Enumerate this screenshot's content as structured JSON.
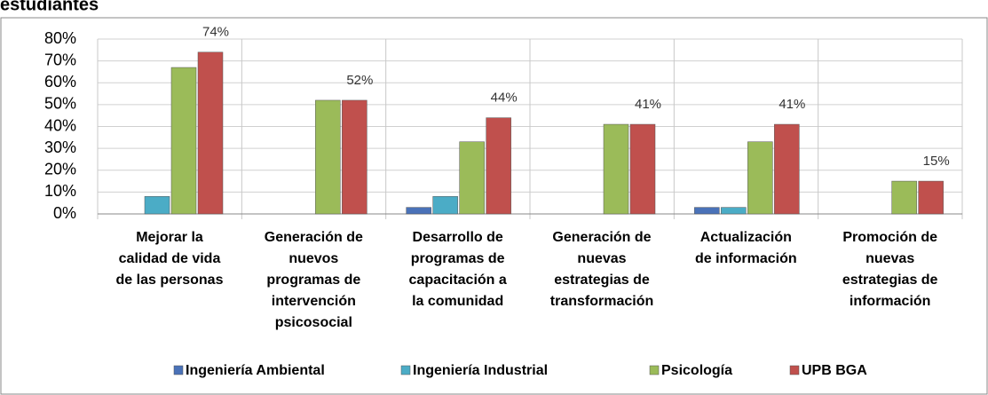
{
  "chart_data": {
    "type": "bar",
    "title": "estudiantes",
    "categories": [
      "Mejorar la\ncalidad de vida\nde las personas",
      "Generación de\nnuevos\nprogramas de\nintervención\npsicosocial",
      "Desarrollo de\nprogramas de\ncapacitación a\nla comunidad",
      "Generación de\nnuevas\nestrategias de\ntransformación",
      "Actualización\nde información",
      "Promoción de\nnuevas\nestrategias de\ninformación"
    ],
    "series": [
      {
        "name": "Ingeniería Ambiental",
        "color": "#4a72b8",
        "values": [
          0,
          0,
          3,
          0,
          3,
          0
        ]
      },
      {
        "name": "Ingeniería Industrial",
        "color": "#4bacc6",
        "values": [
          8,
          0,
          8,
          0,
          3,
          0
        ]
      },
      {
        "name": "Psicología",
        "color": "#9bbb59",
        "values": [
          67,
          52,
          33,
          41,
          33,
          15
        ]
      },
      {
        "name": "UPB BGA",
        "color": "#c0504d",
        "values": [
          74,
          52,
          44,
          41,
          41,
          15
        ],
        "value_labels": [
          "74%",
          "52%",
          "44%",
          "41%",
          "41%",
          "15%"
        ]
      }
    ],
    "ylim": [
      0,
      80
    ],
    "yticks": [
      {
        "value": 0,
        "label": "0%"
      },
      {
        "value": 10,
        "label": "10%"
      },
      {
        "value": 20,
        "label": "20%"
      },
      {
        "value": 30,
        "label": "30%"
      },
      {
        "value": 40,
        "label": "40%"
      },
      {
        "value": 50,
        "label": "50%"
      },
      {
        "value": 60,
        "label": "60%"
      },
      {
        "value": 70,
        "label": "70%"
      },
      {
        "value": 80,
        "label": "80%"
      }
    ],
    "grid": true,
    "legend": "bottom"
  }
}
